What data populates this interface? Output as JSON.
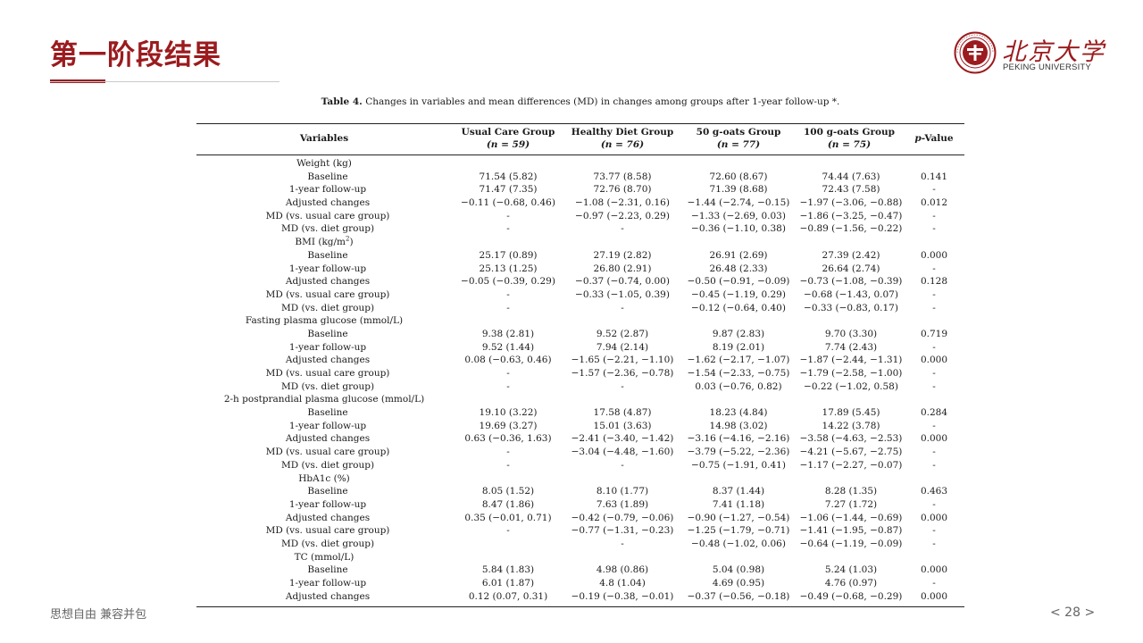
{
  "slide": {
    "title": "第一阶段结果",
    "footer_motto": "思想自由 兼容并包",
    "page_number": "< 28 >"
  },
  "logo": {
    "name_cn": "北京大学",
    "name_en": "PEKING UNIVERSITY"
  },
  "colors": {
    "accent": "#9b1b1e"
  },
  "table": {
    "caption_label": "Table 4.",
    "caption_text": "Changes in variables and mean differences (MD) in changes among groups after 1-year follow-up *.",
    "headers": {
      "variables": "Variables",
      "g1": "Usual Care Group",
      "g1_n": "(n = 59)",
      "g2": "Healthy Diet Group",
      "g2_n": "(n = 76)",
      "g3": "50 g-oats Group",
      "g3_n": "(n = 77)",
      "g4": "100 g-oats Group",
      "g4_n": "(n = 75)",
      "p_italic": "p",
      "p_rest": "-Value"
    },
    "rows": [
      {
        "label": "Weight (kg)",
        "section": true
      },
      {
        "label": "Baseline",
        "g1": "71.54 (5.82)",
        "g2": "73.77 (8.58)",
        "g3": "72.60 (8.67)",
        "g4": "74.44 (7.63)",
        "p": "0.141"
      },
      {
        "label": "1-year follow-up",
        "g1": "71.47 (7.35)",
        "g2": "72.76 (8.70)",
        "g3": "71.39 (8.68)",
        "g4": "72.43 (7.58)",
        "p": "-"
      },
      {
        "label": "Adjusted changes",
        "g1": "−0.11 (−0.68, 0.46)",
        "g2": "−1.08 (−2.31, 0.16)",
        "g3": "−1.44 (−2.74, −0.15)",
        "g4": "−1.97 (−3.06, −0.88)",
        "p": "0.012"
      },
      {
        "label": "MD (vs. usual care group)",
        "g1": "-",
        "g2": "−0.97 (−2.23, 0.29)",
        "g3": "−1.33 (−2.69, 0.03)",
        "g4": "−1.86 (−3.25, −0.47)",
        "p": "-"
      },
      {
        "label": "MD (vs. diet group)",
        "g1": "-",
        "g2": "-",
        "g3": "−0.36 (−1.10, 0.38)",
        "g4": "−0.89 (−1.56, −0.22)",
        "p": "-"
      },
      {
        "label": "BMI (kg/m",
        "label_sup": "2",
        "label_end": ")",
        "section": true
      },
      {
        "label": "Baseline",
        "g1": "25.17 (0.89)",
        "g2": "27.19 (2.82)",
        "g3": "26.91 (2.69)",
        "g4": "27.39 (2.42)",
        "p": "0.000"
      },
      {
        "label": "1-year follow-up",
        "g1": "25.13 (1.25)",
        "g2": "26.80 (2.91)",
        "g3": "26.48 (2.33)",
        "g4": "26.64 (2.74)",
        "p": "-"
      },
      {
        "label": "Adjusted changes",
        "g1": "−0.05 (−0.39, 0.29)",
        "g2": "−0.37 (−0.74, 0.00)",
        "g3": "−0.50 (−0.91, −0.09)",
        "g4": "−0.73 (−1.08, −0.39)",
        "p": "0.128"
      },
      {
        "label": "MD (vs. usual care group)",
        "g1": "-",
        "g2": "−0.33 (−1.05, 0.39)",
        "g3": "−0.45 (−1.19, 0.29)",
        "g4": "−0.68 (−1.43, 0.07)",
        "p": "-"
      },
      {
        "label": "MD (vs. diet group)",
        "g1": "-",
        "g2": "-",
        "g3": "−0.12 (−0.64, 0.40)",
        "g4": "−0.33 (−0.83, 0.17)",
        "p": "-"
      },
      {
        "label": "Fasting plasma glucose (mmol/L)",
        "section": true
      },
      {
        "label": "Baseline",
        "g1": "9.38 (2.81)",
        "g2": "9.52 (2.87)",
        "g3": "9.87 (2.83)",
        "g4": "9.70 (3.30)",
        "p": "0.719"
      },
      {
        "label": "1-year follow-up",
        "g1": "9.52 (1.44)",
        "g2": "7.94 (2.14)",
        "g3": "8.19 (2.01)",
        "g4": "7.74 (2.43)",
        "p": "-"
      },
      {
        "label": "Adjusted changes",
        "g1": "0.08 (−0.63, 0.46)",
        "g2": "−1.65 (−2.21, −1.10)",
        "g3": "−1.62 (−2.17, −1.07)",
        "g4": "−1.87 (−2.44, −1.31)",
        "p": "0.000"
      },
      {
        "label": "MD (vs. usual care group)",
        "g1": "-",
        "g2": "−1.57 (−2.36, −0.78)",
        "g3": "−1.54 (−2.33, −0.75)",
        "g4": "−1.79 (−2.58, −1.00)",
        "p": "-"
      },
      {
        "label": "MD (vs. diet group)",
        "g1": "-",
        "g2": "-",
        "g3": "0.03 (−0.76, 0.82)",
        "g4": "−0.22 (−1.02, 0.58)",
        "p": "-"
      },
      {
        "label": "2-h postprandial plasma glucose (mmol/L)",
        "section": true
      },
      {
        "label": "Baseline",
        "g1": "19.10 (3.22)",
        "g2": "17.58 (4.87)",
        "g3": "18.23 (4.84)",
        "g4": "17.89 (5.45)",
        "p": "0.284"
      },
      {
        "label": "1-year follow-up",
        "g1": "19.69 (3.27)",
        "g2": "15.01 (3.63)",
        "g3": "14.98 (3.02)",
        "g4": "14.22 (3.78)",
        "p": "-"
      },
      {
        "label": "Adjusted changes",
        "g1": "0.63 (−0.36, 1.63)",
        "g2": "−2.41 (−3.40, −1.42)",
        "g3": "−3.16 (−4.16, −2.16)",
        "g4": "−3.58 (−4.63, −2.53)",
        "p": "0.000"
      },
      {
        "label": "MD (vs. usual care group)",
        "g1": "-",
        "g2": "−3.04 (−4.48, −1.60)",
        "g3": "−3.79 (−5.22, −2.36)",
        "g4": "−4.21 (−5.67, −2.75)",
        "p": "-"
      },
      {
        "label": "MD (vs. diet group)",
        "g1": "-",
        "g2": "-",
        "g3": "−0.75 (−1.91, 0.41)",
        "g4": "−1.17 (−2.27, −0.07)",
        "p": "-"
      },
      {
        "label": "HbA1c (%)",
        "section": true
      },
      {
        "label": "Baseline",
        "g1": "8.05 (1.52)",
        "g2": "8.10 (1.77)",
        "g3": "8.37 (1.44)",
        "g4": "8.28 (1.35)",
        "p": "0.463"
      },
      {
        "label": "1-year follow-up",
        "g1": "8.47 (1.86)",
        "g2": "7.63 (1.89)",
        "g3": "7.41 (1.18)",
        "g4": "7.27 (1.72)",
        "p": "-"
      },
      {
        "label": "Adjusted changes",
        "g1": "0.35 (−0.01, 0.71)",
        "g2": "−0.42 (−0.79, −0.06)",
        "g3": "−0.90 (−1.27, −0.54)",
        "g4": "−1.06 (−1.44, −0.69)",
        "p": "0.000"
      },
      {
        "label": "MD (vs. usual care group)",
        "g1": "-",
        "g2": "−0.77 (−1.31, −0.23)",
        "g3": "−1.25 (−1.79, −0.71)",
        "g4": "−1.41 (−1.95, −0.87)",
        "p": "-"
      },
      {
        "label": "MD (vs. diet group)",
        "g1": "",
        "g2": "-",
        "g3": "−0.48 (−1.02, 0.06)",
        "g4": "−0.64 (−1.19, −0.09)",
        "p": "-"
      },
      {
        "label": "TC (mmol/L)",
        "section": true
      },
      {
        "label": "Baseline",
        "g1": "5.84 (1.83)",
        "g2": "4.98 (0.86)",
        "g3": "5.04 (0.98)",
        "g4": "5.24 (1.03)",
        "p": "0.000"
      },
      {
        "label": "1-year follow-up",
        "g1": "6.01 (1.87)",
        "g2": "4.8 (1.04)",
        "g3": "4.69 (0.95)",
        "g4": "4.76 (0.97)",
        "p": "-"
      },
      {
        "label": "Adjusted changes",
        "g1": "0.12 (0.07, 0.31)",
        "g2": "−0.19 (−0.38, −0.01)",
        "g3": "−0.37 (−0.56, −0.18)",
        "g4": "−0.49 (−0.68, −0.29)",
        "p": "0.000"
      }
    ]
  }
}
